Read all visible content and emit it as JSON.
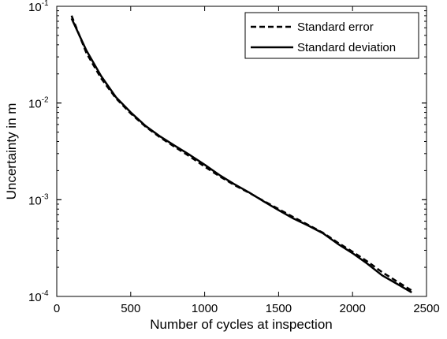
{
  "chart_data": {
    "type": "line",
    "xlabel": "Number of cycles at inspection",
    "ylabel": "Uncertainty in m",
    "xlim": [
      0,
      2500
    ],
    "ylim": [
      0.0001,
      0.1
    ],
    "yscale": "log",
    "grid": false,
    "legend_position": "top-right",
    "x_ticks": [
      {
        "value": 0,
        "label": "0"
      },
      {
        "value": 500,
        "label": "500"
      },
      {
        "value": 1000,
        "label": "1000"
      },
      {
        "value": 1500,
        "label": "1500"
      },
      {
        "value": 2000,
        "label": "2000"
      },
      {
        "value": 2500,
        "label": "2500"
      }
    ],
    "y_ticks": [
      {
        "value": 0.1,
        "base": "10",
        "exp": "-1"
      },
      {
        "value": 0.01,
        "base": "10",
        "exp": "-2"
      },
      {
        "value": 0.001,
        "base": "10",
        "exp": "-3"
      },
      {
        "value": 0.0001,
        "base": "10",
        "exp": "-4"
      }
    ],
    "series": [
      {
        "name": "Standard error",
        "style": "dashed",
        "color": "#000000",
        "x": [
          100,
          200,
          300,
          400,
          500,
          600,
          700,
          800,
          900,
          1000,
          1100,
          1200,
          1300,
          1400,
          1500,
          1600,
          1700,
          1800,
          1900,
          2000,
          2100,
          2200,
          2300,
          2400
        ],
        "y": [
          0.08,
          0.033,
          0.018,
          0.0112,
          0.0078,
          0.0057,
          0.0044,
          0.0035,
          0.0028,
          0.0022,
          0.00175,
          0.00142,
          0.00118,
          0.00097,
          0.0008,
          0.00066,
          0.00055,
          0.000455,
          0.00036,
          0.00029,
          0.00023,
          0.000178,
          0.000143,
          0.000115
        ]
      },
      {
        "name": "Standard deviation",
        "style": "solid",
        "color": "#000000",
        "x": [
          100,
          200,
          300,
          400,
          500,
          600,
          700,
          800,
          900,
          1000,
          1100,
          1200,
          1300,
          1400,
          1500,
          1600,
          1700,
          1800,
          1900,
          2000,
          2100,
          2200,
          2300,
          2400
        ],
        "y": [
          0.075,
          0.035,
          0.019,
          0.0115,
          0.008,
          0.0058,
          0.0045,
          0.0036,
          0.0029,
          0.0023,
          0.0018,
          0.00145,
          0.00119,
          0.00096,
          0.00078,
          0.00064,
          0.00054,
          0.00045,
          0.00035,
          0.00028,
          0.000218,
          0.000165,
          0.000135,
          0.00011
        ]
      }
    ]
  }
}
